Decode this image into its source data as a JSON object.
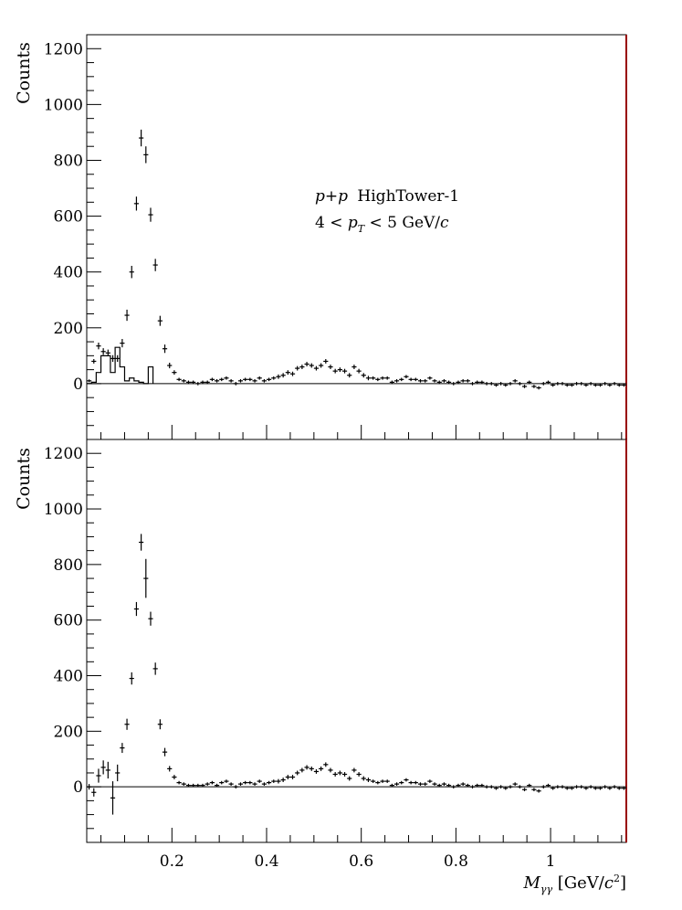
{
  "chart_data": [
    {
      "type": "scatter",
      "ylabel": "Counts",
      "ylim": [
        -200,
        1250
      ],
      "xlim": [
        0.02,
        1.16
      ],
      "yticks": [
        0,
        200,
        400,
        600,
        800,
        1000,
        1200
      ],
      "annotation_lines": [
        "p+p HighTower-1",
        "4 < p_T < 5 GeV/c"
      ],
      "annotation_parts": {
        "line1_math": "p+p",
        "line1_text": "HighTower-1",
        "line2_pre": "4 < ",
        "line2_p": "p",
        "line2_sub": "T",
        "line2_post": " < 5 GeV/",
        "line2_c": "c"
      },
      "series": [
        {
          "style": "points",
          "x": [
            0.025,
            0.035,
            0.045,
            0.055,
            0.065,
            0.075,
            0.085,
            0.095,
            0.105,
            0.115,
            0.125,
            0.135,
            0.145,
            0.155,
            0.165,
            0.175,
            0.185,
            0.195,
            0.205,
            0.215,
            0.225,
            0.235,
            0.245,
            0.255,
            0.265,
            0.275,
            0.285,
            0.295,
            0.305,
            0.315,
            0.325,
            0.335,
            0.345,
            0.355,
            0.365,
            0.375,
            0.385,
            0.395,
            0.405,
            0.415,
            0.425,
            0.435,
            0.445,
            0.455,
            0.465,
            0.475,
            0.485,
            0.495,
            0.505,
            0.515,
            0.525,
            0.535,
            0.545,
            0.555,
            0.565,
            0.575,
            0.585,
            0.595,
            0.605,
            0.615,
            0.625,
            0.635,
            0.645,
            0.655,
            0.665,
            0.675,
            0.685,
            0.695,
            0.705,
            0.715,
            0.725,
            0.735,
            0.745,
            0.755,
            0.765,
            0.775,
            0.785,
            0.795,
            0.805,
            0.815,
            0.825,
            0.835,
            0.845,
            0.855,
            0.865,
            0.875,
            0.885,
            0.895,
            0.905,
            0.915,
            0.925,
            0.935,
            0.945,
            0.955,
            0.965,
            0.975,
            0.985,
            0.995,
            1.005,
            1.015,
            1.025,
            1.035,
            1.045,
            1.055,
            1.065,
            1.075,
            1.085,
            1.095,
            1.105,
            1.115,
            1.125,
            1.135,
            1.145,
            1.155
          ],
          "y": [
            10,
            80,
            135,
            115,
            110,
            90,
            90,
            145,
            245,
            400,
            645,
            880,
            820,
            605,
            425,
            225,
            125,
            65,
            40,
            15,
            10,
            5,
            5,
            0,
            5,
            5,
            15,
            10,
            15,
            20,
            10,
            0,
            10,
            15,
            15,
            10,
            20,
            10,
            15,
            20,
            25,
            30,
            40,
            35,
            55,
            60,
            70,
            65,
            55,
            65,
            80,
            60,
            45,
            50,
            45,
            30,
            60,
            45,
            30,
            20,
            20,
            15,
            20,
            20,
            5,
            10,
            15,
            25,
            15,
            15,
            10,
            10,
            20,
            10,
            5,
            10,
            5,
            0,
            5,
            10,
            10,
            0,
            5,
            5,
            0,
            0,
            -5,
            0,
            -5,
            0,
            10,
            0,
            -10,
            5,
            -10,
            -15,
            0,
            5,
            -5,
            0,
            0,
            -5,
            -5,
            0,
            0,
            -5,
            0,
            -5,
            -5,
            0,
            -5,
            0,
            -5,
            -5
          ],
          "err": [
            5,
            8,
            12,
            12,
            12,
            12,
            12,
            15,
            20,
            22,
            25,
            30,
            30,
            25,
            22,
            18,
            15,
            10,
            8,
            6,
            6,
            6,
            6,
            6,
            6,
            6,
            6,
            6,
            6,
            6,
            6,
            6,
            6,
            6,
            6,
            6,
            6,
            6,
            6,
            6,
            8,
            8,
            8,
            8,
            8,
            8,
            8,
            8,
            8,
            8,
            8,
            8,
            8,
            8,
            8,
            8,
            8,
            8,
            8,
            8,
            6,
            6,
            6,
            6,
            6,
            6,
            6,
            6,
            6,
            6,
            6,
            6,
            6,
            6,
            6,
            6,
            6,
            6,
            6,
            6,
            6,
            6,
            6,
            6,
            6,
            6,
            6,
            6,
            6,
            6,
            6,
            6,
            6,
            6,
            6,
            6,
            6,
            6,
            6,
            6,
            6,
            6,
            6,
            6,
            6,
            6,
            6,
            6,
            6,
            6,
            6,
            6,
            6,
            6
          ]
        },
        {
          "style": "step-histogram",
          "edges": [
            0.02,
            0.03,
            0.04,
            0.05,
            0.06,
            0.07,
            0.08,
            0.09,
            0.1,
            0.11,
            0.12,
            0.13,
            0.14,
            0.15,
            0.16
          ],
          "values": [
            0,
            5,
            40,
            100,
            100,
            40,
            130,
            60,
            10,
            20,
            10,
            5,
            0,
            60
          ]
        }
      ]
    },
    {
      "type": "scatter",
      "ylabel": "Counts",
      "xlabel": "M_γγ [GeV/c²]",
      "xlabel_parts": {
        "m": "M",
        "sub": "γγ",
        "pre": " [GeV/",
        "c": "c",
        "sup": "2",
        "post": "]"
      },
      "ylim": [
        -200,
        1250
      ],
      "xlim": [
        0.02,
        1.16
      ],
      "yticks": [
        0,
        200,
        400,
        600,
        800,
        1000,
        1200
      ],
      "xticks": [
        0.2,
        0.4,
        0.6,
        0.8,
        1.0
      ],
      "xtick_labels": [
        "0.2",
        "0.4",
        "0.6",
        "0.8",
        "1"
      ],
      "series": [
        {
          "style": "points",
          "x": [
            0.025,
            0.035,
            0.045,
            0.055,
            0.065,
            0.075,
            0.085,
            0.095,
            0.105,
            0.115,
            0.125,
            0.135,
            0.145,
            0.155,
            0.165,
            0.175,
            0.185,
            0.195,
            0.205,
            0.215,
            0.225,
            0.235,
            0.245,
            0.255,
            0.265,
            0.275,
            0.285,
            0.295,
            0.305,
            0.315,
            0.325,
            0.335,
            0.345,
            0.355,
            0.365,
            0.375,
            0.385,
            0.395,
            0.405,
            0.415,
            0.425,
            0.435,
            0.445,
            0.455,
            0.465,
            0.475,
            0.485,
            0.495,
            0.505,
            0.515,
            0.525,
            0.535,
            0.545,
            0.555,
            0.565,
            0.575,
            0.585,
            0.595,
            0.605,
            0.615,
            0.625,
            0.635,
            0.645,
            0.655,
            0.665,
            0.675,
            0.685,
            0.695,
            0.705,
            0.715,
            0.725,
            0.735,
            0.745,
            0.755,
            0.765,
            0.775,
            0.785,
            0.795,
            0.805,
            0.815,
            0.825,
            0.835,
            0.845,
            0.855,
            0.865,
            0.875,
            0.885,
            0.895,
            0.905,
            0.915,
            0.925,
            0.935,
            0.945,
            0.955,
            0.965,
            0.975,
            0.985,
            0.995,
            1.005,
            1.015,
            1.025,
            1.035,
            1.045,
            1.055,
            1.065,
            1.075,
            1.085,
            1.095,
            1.105,
            1.115,
            1.125,
            1.135,
            1.145,
            1.155
          ],
          "y": [
            0,
            -20,
            40,
            70,
            60,
            -40,
            50,
            140,
            225,
            390,
            640,
            880,
            750,
            605,
            425,
            225,
            125,
            65,
            35,
            15,
            10,
            5,
            5,
            5,
            5,
            10,
            15,
            5,
            15,
            20,
            10,
            0,
            10,
            15,
            15,
            10,
            20,
            10,
            15,
            20,
            20,
            25,
            35,
            35,
            50,
            60,
            70,
            65,
            55,
            65,
            80,
            60,
            45,
            50,
            45,
            30,
            60,
            45,
            30,
            25,
            20,
            15,
            20,
            20,
            5,
            10,
            15,
            25,
            15,
            15,
            10,
            10,
            20,
            10,
            5,
            10,
            5,
            0,
            5,
            10,
            5,
            0,
            5,
            5,
            0,
            0,
            -5,
            0,
            -5,
            0,
            10,
            0,
            -10,
            5,
            -10,
            -15,
            0,
            5,
            -5,
            0,
            0,
            -5,
            -5,
            0,
            0,
            -5,
            0,
            -5,
            -5,
            0,
            -5,
            0,
            -5,
            -5
          ],
          "err": [
            10,
            15,
            25,
            25,
            30,
            60,
            30,
            18,
            20,
            22,
            25,
            30,
            70,
            25,
            22,
            18,
            15,
            10,
            8,
            6,
            6,
            6,
            6,
            6,
            6,
            6,
            6,
            6,
            6,
            6,
            6,
            6,
            6,
            6,
            6,
            6,
            6,
            6,
            6,
            6,
            8,
            8,
            8,
            8,
            8,
            8,
            8,
            8,
            8,
            8,
            8,
            8,
            8,
            8,
            8,
            8,
            8,
            8,
            8,
            8,
            6,
            6,
            6,
            6,
            6,
            6,
            6,
            6,
            6,
            6,
            6,
            6,
            6,
            6,
            6,
            6,
            6,
            6,
            6,
            6,
            6,
            6,
            6,
            6,
            6,
            6,
            6,
            6,
            6,
            6,
            6,
            6,
            6,
            6,
            6,
            6,
            6,
            6,
            6,
            6,
            6,
            6,
            6,
            6,
            6,
            6,
            6,
            6,
            6,
            6,
            6,
            6,
            6,
            6
          ]
        }
      ]
    }
  ],
  "colors": {
    "frame_right": "#990000",
    "ink": "#000000"
  }
}
